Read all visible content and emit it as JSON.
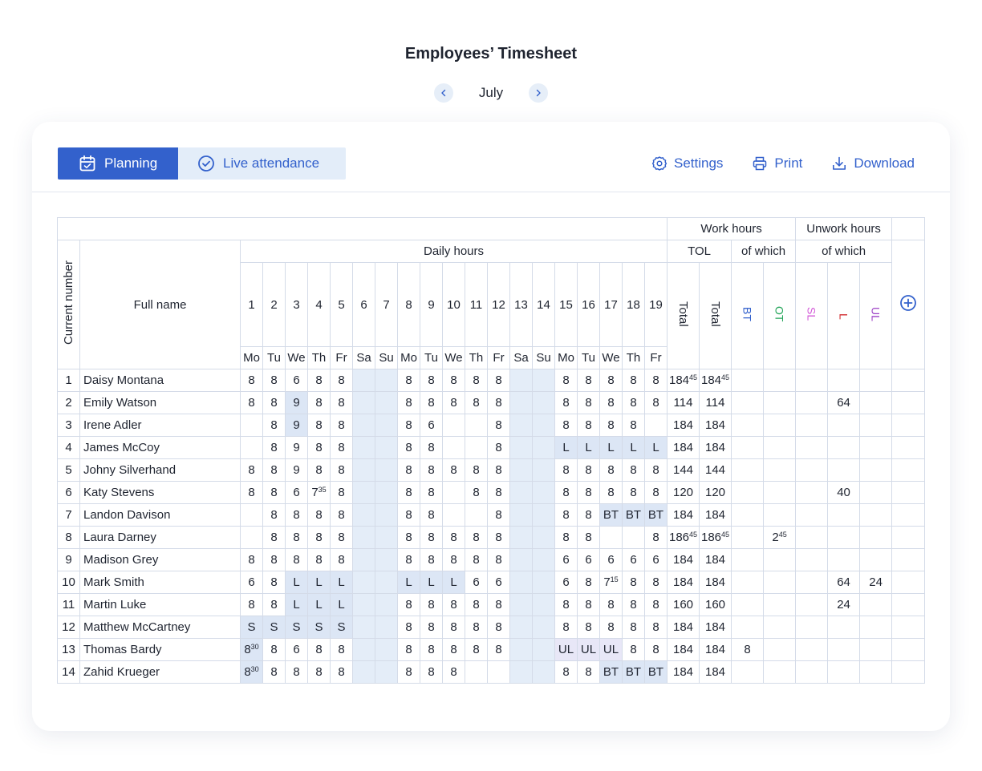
{
  "header": {
    "title": "Employees’ Timesheet",
    "month": "July"
  },
  "tabs": {
    "planning": "Planning",
    "live": "Live attendance"
  },
  "actions": {
    "settings": "Settings",
    "print": "Print",
    "download": "Download"
  },
  "table": {
    "headers": {
      "work_hours": "Work hours",
      "unwork_hours": "Unwork hours",
      "daily_hours": "Daily hours",
      "tol": "TOL",
      "of_which_work": "of which",
      "of_which_unwork": "of which",
      "current_number": "Current number",
      "full_name": "Full name",
      "total_1": "Total",
      "total_2": "Total",
      "bt": "BT",
      "ot": "OT",
      "sl": "SL",
      "l": "L",
      "ul": "UL"
    },
    "days": [
      {
        "n": "1",
        "w": "Mo"
      },
      {
        "n": "2",
        "w": "Tu"
      },
      {
        "n": "3",
        "w": "We"
      },
      {
        "n": "4",
        "w": "Th"
      },
      {
        "n": "5",
        "w": "Fr"
      },
      {
        "n": "6",
        "w": "Sa"
      },
      {
        "n": "7",
        "w": "Su"
      },
      {
        "n": "8",
        "w": "Mo"
      },
      {
        "n": "9",
        "w": "Tu"
      },
      {
        "n": "10",
        "w": "We"
      },
      {
        "n": "11",
        "w": "Th"
      },
      {
        "n": "12",
        "w": "Fr"
      },
      {
        "n": "13",
        "w": "Sa"
      },
      {
        "n": "14",
        "w": "Su"
      },
      {
        "n": "15",
        "w": "Mo"
      },
      {
        "n": "16",
        "w": "Tu"
      },
      {
        "n": "17",
        "w": "We"
      },
      {
        "n": "18",
        "w": "Th"
      },
      {
        "n": "19",
        "w": "Fr"
      }
    ],
    "rows": [
      {
        "num": "1",
        "name": "Daisy Montana",
        "cells": [
          "8",
          "8",
          "6",
          "8",
          "8",
          "",
          "",
          "8",
          "8",
          "8",
          "8",
          "8",
          "",
          "",
          "8",
          "8",
          "8",
          "8",
          "8"
        ],
        "total": "184^45",
        "tol": "184^45",
        "bt": "",
        "ot": "",
        "sl": "",
        "l": "",
        "ul": ""
      },
      {
        "num": "2",
        "name": "Emily Watson",
        "cells": [
          "8",
          "8",
          "9",
          "8",
          "8",
          "",
          "",
          "8",
          "8",
          "8",
          "8",
          "8",
          "",
          "",
          "8",
          "8",
          "8",
          "8",
          "8"
        ],
        "total": "114",
        "tol": "114",
        "bt": "",
        "ot": "",
        "sl": "",
        "l": "64",
        "ul": ""
      },
      {
        "num": "3",
        "name": "Irene Adler",
        "cells": [
          "",
          "8",
          "9",
          "8",
          "8",
          "",
          "",
          "8",
          "6",
          "",
          "",
          "8",
          "",
          "",
          "8",
          "8",
          "8",
          "8",
          ""
        ],
        "total": "184",
        "tol": "184",
        "bt": "",
        "ot": "",
        "sl": "",
        "l": "",
        "ul": ""
      },
      {
        "num": "4",
        "name": "James McCoy",
        "cells": [
          "",
          "8",
          "9",
          "8",
          "8",
          "",
          "",
          "8",
          "8",
          "",
          "",
          "8",
          "",
          "",
          "L",
          "L",
          "L",
          "L",
          "L"
        ],
        "total": "184",
        "tol": "184",
        "bt": "",
        "ot": "",
        "sl": "",
        "l": "",
        "ul": ""
      },
      {
        "num": "5",
        "name": "Johny Silverhand",
        "cells": [
          "8",
          "8",
          "9",
          "8",
          "8",
          "",
          "",
          "8",
          "8",
          "8",
          "8",
          "8",
          "",
          "",
          "8",
          "8",
          "8",
          "8",
          "8"
        ],
        "total": "144",
        "tol": "144",
        "bt": "",
        "ot": "",
        "sl": "",
        "l": "",
        "ul": ""
      },
      {
        "num": "6",
        "name": "Katy Stevens",
        "cells": [
          "8",
          "8",
          "6",
          "7^35",
          "8",
          "",
          "",
          "8",
          "8",
          "",
          "8",
          "8",
          "",
          "",
          "8",
          "8",
          "8",
          "8",
          "8"
        ],
        "total": "120",
        "tol": "120",
        "bt": "",
        "ot": "",
        "sl": "",
        "l": "40",
        "ul": ""
      },
      {
        "num": "7",
        "name": "Landon Davison",
        "cells": [
          "",
          "8",
          "8",
          "8",
          "8",
          "",
          "",
          "8",
          "8",
          "",
          "",
          "8",
          "",
          "",
          "8",
          "8",
          "BT",
          "BT",
          "BT"
        ],
        "total": "184",
        "tol": "184",
        "bt": "",
        "ot": "",
        "sl": "",
        "l": "",
        "ul": ""
      },
      {
        "num": "8",
        "name": "Laura Darney",
        "cells": [
          "",
          "8",
          "8",
          "8",
          "8",
          "",
          "",
          "8",
          "8",
          "8",
          "8",
          "8",
          "",
          "",
          "8",
          "8",
          "",
          "",
          "8"
        ],
        "total": "186^45",
        "tol": "186^45",
        "bt": "",
        "ot": "2^45",
        "sl": "",
        "l": "",
        "ul": ""
      },
      {
        "num": "9",
        "name": "Madison Grey",
        "cells": [
          "8",
          "8",
          "8",
          "8",
          "8",
          "",
          "",
          "8",
          "8",
          "8",
          "8",
          "8",
          "",
          "",
          "6",
          "6",
          "6",
          "6",
          "6"
        ],
        "total": "184",
        "tol": "184",
        "bt": "",
        "ot": "",
        "sl": "",
        "l": "",
        "ul": ""
      },
      {
        "num": "10",
        "name": "Mark Smith",
        "cells": [
          "6",
          "8",
          "L",
          "L",
          "L",
          "",
          "",
          "L",
          "L",
          "L",
          "6",
          "6",
          "",
          "",
          "6",
          "8",
          "7^15",
          "8",
          "8"
        ],
        "total": "184",
        "tol": "184",
        "bt": "",
        "ot": "",
        "sl": "",
        "l": "64",
        "ul": "24"
      },
      {
        "num": "11",
        "name": "Martin Luke",
        "cells": [
          "8",
          "8",
          "L",
          "L",
          "L",
          "",
          "",
          "8",
          "8",
          "8",
          "8",
          "8",
          "",
          "",
          "8",
          "8",
          "8",
          "8",
          "8"
        ],
        "total": "160",
        "tol": "160",
        "bt": "",
        "ot": "",
        "sl": "",
        "l": "24",
        "ul": ""
      },
      {
        "num": "12",
        "name": "Matthew McCartney",
        "cells": [
          "S",
          "S",
          "S",
          "S",
          "S",
          "",
          "",
          "8",
          "8",
          "8",
          "8",
          "8",
          "",
          "",
          "8",
          "8",
          "8",
          "8",
          "8"
        ],
        "total": "184",
        "tol": "184",
        "bt": "",
        "ot": "",
        "sl": "",
        "l": "",
        "ul": ""
      },
      {
        "num": "13",
        "name": "Thomas Bardy",
        "cells": [
          "8^30",
          "8",
          "6",
          "8",
          "8",
          "",
          "",
          "8",
          "8",
          "8",
          "8",
          "8",
          "",
          "",
          "UL",
          "UL",
          "UL",
          "8",
          "8"
        ],
        "total": "184",
        "tol": "184",
        "bt": "8",
        "ot": "",
        "sl": "",
        "l": "",
        "ul": ""
      },
      {
        "num": "14",
        "name": "Zahid Krueger",
        "cells": [
          "8^30",
          "8",
          "8",
          "8",
          "8",
          "",
          "",
          "8",
          "8",
          "8",
          "",
          "",
          "",
          "",
          "8",
          "8",
          "BT",
          "BT",
          "BT"
        ],
        "total": "184",
        "tol": "184",
        "bt": "",
        "ot": "",
        "sl": "",
        "l": "",
        "ul": ""
      }
    ]
  },
  "colors": {
    "accent": "#3361cc",
    "tab_inactive_bg": "#e3edf9",
    "weekend_bg": "#e4edf8",
    "leave_red": "#d0282d",
    "sick_pink": "#d35ad8",
    "unpaid_purple": "#9c41c6",
    "overtime_green": "#25a55a"
  },
  "icons": {
    "prev": "chevron-left-icon",
    "next": "chevron-right-icon",
    "planning": "calendar-icon",
    "live": "check-circle-icon",
    "settings": "gear-icon",
    "print": "printer-icon",
    "download": "download-icon",
    "add_column": "plus-circle-icon"
  }
}
